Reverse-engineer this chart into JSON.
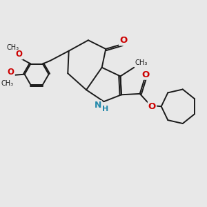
{
  "background_color": "#e8e8e8",
  "bond_color": "#1a1a1a",
  "O_color": "#cc0000",
  "N_color": "#2288aa",
  "line_width": 1.4,
  "figsize": [
    3.0,
    3.0
  ],
  "dpi": 100,
  "xlim": [
    0,
    10
  ],
  "ylim": [
    0,
    10
  ]
}
